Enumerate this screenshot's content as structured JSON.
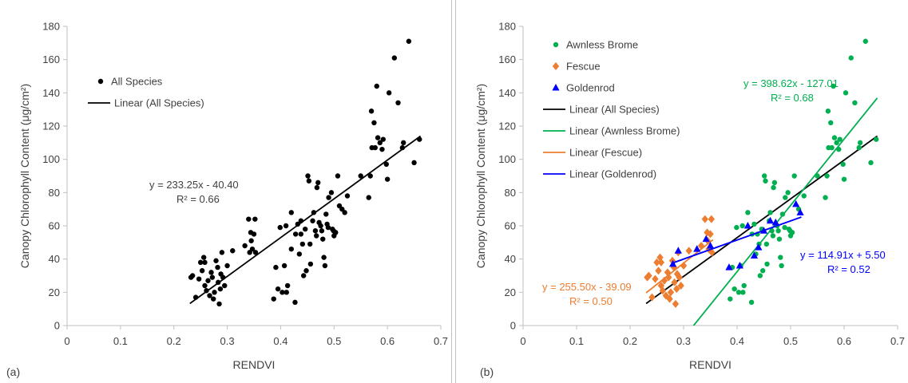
{
  "chart_data": [
    {
      "type": "scatter",
      "panel_label": "(a)",
      "xlabel": "RENDVI",
      "ylabel": "Canopy Chlorophyll Content (μg/cm²)",
      "xlim": [
        0,
        0.7
      ],
      "ylim": [
        0,
        180
      ],
      "xticks": [
        "0",
        "0.1",
        "0.2",
        "0.3",
        "0.4",
        "0.5",
        "0.6",
        "0.7"
      ],
      "yticks": [
        "0",
        "20",
        "40",
        "60",
        "80",
        "100",
        "120",
        "140",
        "160",
        "180"
      ],
      "grid": false,
      "legend_position": "top-left",
      "series": [
        {
          "name": "All Species",
          "marker": "circle",
          "color": "#000000",
          "points": [
            [
              0.232,
              29
            ],
            [
              0.235,
              30
            ],
            [
              0.241,
              17
            ],
            [
              0.247,
              28
            ],
            [
              0.25,
              38
            ],
            [
              0.253,
              33
            ],
            [
              0.256,
              41
            ],
            [
              0.258,
              38
            ],
            [
              0.258,
              24
            ],
            [
              0.261,
              21
            ],
            [
              0.264,
              27
            ],
            [
              0.267,
              18
            ],
            [
              0.27,
              32
            ],
            [
              0.272,
              29
            ],
            [
              0.274,
              16
            ],
            [
              0.276,
              20
            ],
            [
              0.279,
              39
            ],
            [
              0.282,
              35
            ],
            [
              0.283,
              26
            ],
            [
              0.285,
              13
            ],
            [
              0.287,
              22
            ],
            [
              0.288,
              31
            ],
            [
              0.29,
              44
            ],
            [
              0.292,
              29
            ],
            [
              0.295,
              24
            ],
            [
              0.3,
              36
            ],
            [
              0.31,
              45
            ],
            [
              0.333,
              48
            ],
            [
              0.34,
              64
            ],
            [
              0.342,
              44
            ],
            [
              0.344,
              56
            ],
            [
              0.345,
              51
            ],
            [
              0.347,
              46
            ],
            [
              0.35,
              55
            ],
            [
              0.352,
              64
            ],
            [
              0.353,
              44
            ],
            [
              0.387,
              16
            ],
            [
              0.391,
              35
            ],
            [
              0.395,
              22
            ],
            [
              0.399,
              59
            ],
            [
              0.403,
              20
            ],
            [
              0.407,
              36
            ],
            [
              0.41,
              60
            ],
            [
              0.411,
              20
            ],
            [
              0.413,
              24
            ],
            [
              0.42,
              68
            ],
            [
              0.42,
              46
            ],
            [
              0.427,
              14
            ],
            [
              0.428,
              55
            ],
            [
              0.432,
              61
            ],
            [
              0.435,
              43
            ],
            [
              0.438,
              55
            ],
            [
              0.438,
              63
            ],
            [
              0.441,
              49
            ],
            [
              0.443,
              30
            ],
            [
              0.446,
              58
            ],
            [
              0.448,
              33
            ],
            [
              0.451,
              90
            ],
            [
              0.453,
              87
            ],
            [
              0.455,
              49
            ],
            [
              0.456,
              37
            ],
            [
              0.46,
              63
            ],
            [
              0.462,
              68
            ],
            [
              0.465,
              57
            ],
            [
              0.467,
              54
            ],
            [
              0.468,
              83
            ],
            [
              0.47,
              86
            ],
            [
              0.472,
              62
            ],
            [
              0.475,
              60
            ],
            [
              0.477,
              57
            ],
            [
              0.479,
              52
            ],
            [
              0.481,
              41
            ],
            [
              0.483,
              36
            ],
            [
              0.485,
              67
            ],
            [
              0.487,
              61
            ],
            [
              0.489,
              59
            ],
            [
              0.49,
              77
            ],
            [
              0.495,
              80
            ],
            [
              0.497,
              58
            ],
            [
              0.499,
              57
            ],
            [
              0.5,
              54
            ],
            [
              0.503,
              56
            ],
            [
              0.507,
              90
            ],
            [
              0.51,
              72
            ],
            [
              0.515,
              70
            ],
            [
              0.52,
              68
            ],
            [
              0.525,
              78
            ],
            [
              0.55,
              90
            ],
            [
              0.565,
              77
            ],
            [
              0.568,
              90
            ],
            [
              0.57,
              129
            ],
            [
              0.571,
              107
            ],
            [
              0.575,
              122
            ],
            [
              0.577,
              107
            ],
            [
              0.58,
              144
            ],
            [
              0.582,
              113
            ],
            [
              0.586,
              110
            ],
            [
              0.59,
              106
            ],
            [
              0.592,
              112
            ],
            [
              0.598,
              97
            ],
            [
              0.6,
              88
            ],
            [
              0.603,
              140
            ],
            [
              0.613,
              161
            ],
            [
              0.62,
              134
            ],
            [
              0.628,
              107
            ],
            [
              0.63,
              110
            ],
            [
              0.64,
              171
            ],
            [
              0.65,
              98
            ],
            [
              0.66,
              112
            ]
          ]
        }
      ],
      "trendlines": [
        {
          "name": "Linear (All Species)",
          "color": "#000000",
          "slope": 233.25,
          "intercept": -40.4,
          "x_range": [
            0.23,
            0.662
          ]
        }
      ],
      "annotations": [
        {
          "lines": [
            "y = 233.25x - 40.40",
            "R² = 0.66"
          ],
          "color": "#404040"
        }
      ]
    },
    {
      "type": "scatter",
      "panel_label": "(b)",
      "xlabel": "RENDVI",
      "ylabel": "Canopy Chlorophyll Content (μg/cm²)",
      "xlim": [
        0,
        0.7
      ],
      "ylim": [
        0,
        180
      ],
      "xticks": [
        "0",
        "0.1",
        "0.2",
        "0.3",
        "0.4",
        "0.5",
        "0.6",
        "0.7"
      ],
      "yticks": [
        "0",
        "20",
        "40",
        "60",
        "80",
        "100",
        "120",
        "140",
        "160",
        "180"
      ],
      "grid": false,
      "legend_position": "top-left",
      "series": [
        {
          "name": "Awnless Brome",
          "marker": "circle",
          "color": "#00b050",
          "points": [
            [
              0.387,
              16
            ],
            [
              0.391,
              35
            ],
            [
              0.395,
              22
            ],
            [
              0.399,
              59
            ],
            [
              0.403,
              20
            ],
            [
              0.407,
              36
            ],
            [
              0.41,
              60
            ],
            [
              0.411,
              20
            ],
            [
              0.413,
              24
            ],
            [
              0.42,
              68
            ],
            [
              0.427,
              14
            ],
            [
              0.428,
              55
            ],
            [
              0.432,
              61
            ],
            [
              0.435,
              43
            ],
            [
              0.438,
              55
            ],
            [
              0.441,
              49
            ],
            [
              0.443,
              30
            ],
            [
              0.446,
              58
            ],
            [
              0.448,
              33
            ],
            [
              0.451,
              90
            ],
            [
              0.453,
              87
            ],
            [
              0.455,
              49
            ],
            [
              0.456,
              37
            ],
            [
              0.46,
              63
            ],
            [
              0.462,
              68
            ],
            [
              0.465,
              57
            ],
            [
              0.467,
              54
            ],
            [
              0.468,
              83
            ],
            [
              0.47,
              86
            ],
            [
              0.475,
              60
            ],
            [
              0.477,
              57
            ],
            [
              0.479,
              52
            ],
            [
              0.481,
              41
            ],
            [
              0.483,
              36
            ],
            [
              0.485,
              67
            ],
            [
              0.489,
              59
            ],
            [
              0.49,
              77
            ],
            [
              0.495,
              80
            ],
            [
              0.497,
              58
            ],
            [
              0.499,
              57
            ],
            [
              0.5,
              54
            ],
            [
              0.503,
              56
            ],
            [
              0.507,
              90
            ],
            [
              0.515,
              70
            ],
            [
              0.525,
              78
            ],
            [
              0.55,
              90
            ],
            [
              0.565,
              77
            ],
            [
              0.568,
              90
            ],
            [
              0.57,
              129
            ],
            [
              0.571,
              107
            ],
            [
              0.575,
              122
            ],
            [
              0.577,
              107
            ],
            [
              0.58,
              144
            ],
            [
              0.582,
              113
            ],
            [
              0.586,
              110
            ],
            [
              0.59,
              106
            ],
            [
              0.592,
              112
            ],
            [
              0.598,
              97
            ],
            [
              0.6,
              88
            ],
            [
              0.603,
              140
            ],
            [
              0.613,
              161
            ],
            [
              0.62,
              134
            ],
            [
              0.628,
              107
            ],
            [
              0.63,
              110
            ],
            [
              0.64,
              171
            ],
            [
              0.65,
              98
            ],
            [
              0.66,
              112
            ]
          ]
        },
        {
          "name": "Fescue",
          "marker": "diamond",
          "color": "#ed7d31",
          "points": [
            [
              0.232,
              29
            ],
            [
              0.235,
              30
            ],
            [
              0.241,
              17
            ],
            [
              0.247,
              28
            ],
            [
              0.25,
              38
            ],
            [
              0.253,
              33
            ],
            [
              0.256,
              41
            ],
            [
              0.258,
              38
            ],
            [
              0.258,
              24
            ],
            [
              0.261,
              21
            ],
            [
              0.264,
              27
            ],
            [
              0.267,
              18
            ],
            [
              0.27,
              32
            ],
            [
              0.272,
              29
            ],
            [
              0.274,
              16
            ],
            [
              0.276,
              20
            ],
            [
              0.279,
              39
            ],
            [
              0.282,
              35
            ],
            [
              0.283,
              26
            ],
            [
              0.285,
              13
            ],
            [
              0.287,
              22
            ],
            [
              0.288,
              31
            ],
            [
              0.29,
              44
            ],
            [
              0.292,
              29
            ],
            [
              0.295,
              24
            ],
            [
              0.3,
              36
            ],
            [
              0.31,
              45
            ],
            [
              0.333,
              48
            ],
            [
              0.34,
              64
            ],
            [
              0.344,
              56
            ],
            [
              0.345,
              51
            ],
            [
              0.347,
              46
            ],
            [
              0.35,
              55
            ],
            [
              0.352,
              64
            ],
            [
              0.353,
              44
            ]
          ]
        },
        {
          "name": "Goldenrod",
          "marker": "triangle",
          "color": "#0000ff",
          "points": [
            [
              0.28,
              37
            ],
            [
              0.29,
              45
            ],
            [
              0.325,
              46
            ],
            [
              0.342,
              52
            ],
            [
              0.35,
              48
            ],
            [
              0.385,
              35
            ],
            [
              0.405,
              36
            ],
            [
              0.42,
              60
            ],
            [
              0.432,
              42
            ],
            [
              0.44,
              47
            ],
            [
              0.45,
              57
            ],
            [
              0.462,
              63
            ],
            [
              0.472,
              62
            ],
            [
              0.51,
              73
            ],
            [
              0.518,
              68
            ]
          ]
        }
      ],
      "trendlines": [
        {
          "name": "Linear (All Species)",
          "color": "#000000",
          "slope": 233.25,
          "intercept": -40.4,
          "x_range": [
            0.23,
            0.662
          ]
        },
        {
          "name": "Linear (Awnless Brome)",
          "color": "#00b050",
          "slope": 398.62,
          "intercept": -127.01,
          "x_range": [
            0.3186,
            0.662
          ]
        },
        {
          "name": "Linear (Fescue)",
          "color": "#ed7d31",
          "slope": 255.5,
          "intercept": -39.09,
          "x_range": [
            0.23,
            0.355
          ]
        },
        {
          "name": "Linear (Goldenrod)",
          "color": "#0000ff",
          "slope": 114.91,
          "intercept": 5.5,
          "x_range": [
            0.28,
            0.52
          ]
        }
      ],
      "annotations": [
        {
          "lines": [
            "y = 398.62x - 127.01",
            "R² = 0.68"
          ],
          "color": "#00b050"
        },
        {
          "lines": [
            "y = 255.50x - 39.09",
            "R² = 0.50"
          ],
          "color": "#ed7d31"
        },
        {
          "lines": [
            "y = 114.91x + 5.50",
            "R² = 0.52"
          ],
          "color": "#0000ff"
        }
      ]
    }
  ]
}
